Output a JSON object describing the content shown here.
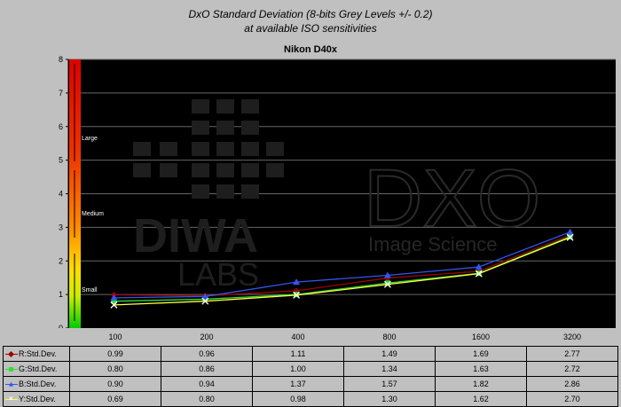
{
  "title_line1": "DxO Standard Deviation (8-bits Grey Levels +/- 0.2)",
  "title_line2": "at available ISO sensitivities",
  "subtitle": "Nikon D40x",
  "watermarks": {
    "left_top": "DIWA",
    "left_bottom": "LABS",
    "right_logo": "DXO",
    "right_sub": "Image Science"
  },
  "scale_labels": {
    "large": "Large",
    "medium": "Medium",
    "small": "Small"
  },
  "colors": {
    "plot_bg": "#000000",
    "page_bg": "#c0c0c0",
    "R": "#a00000",
    "G": "#33dd33",
    "B": "#3355ee",
    "Y": "#ffff40"
  },
  "chart_data": {
    "type": "line",
    "categories": [
      "100",
      "200",
      "400",
      "800",
      "1600",
      "3200"
    ],
    "ylim": [
      0,
      8
    ],
    "yticks": [
      "0",
      "1",
      "2",
      "3",
      "4",
      "5",
      "6",
      "7",
      "8"
    ],
    "grid": true,
    "series": [
      {
        "name": "R:Std.Dev.",
        "color": "#a00000",
        "marker": "diamond",
        "values": [
          0.99,
          0.96,
          1.11,
          1.49,
          1.69,
          2.77
        ]
      },
      {
        "name": "G:Std.Dev.",
        "color": "#33dd33",
        "marker": "square",
        "values": [
          0.8,
          0.86,
          1.0,
          1.34,
          1.63,
          2.72
        ]
      },
      {
        "name": "B:Std.Dev.",
        "color": "#3355ee",
        "marker": "triangle",
        "values": [
          0.9,
          0.94,
          1.37,
          1.57,
          1.82,
          2.86
        ]
      },
      {
        "name": "Y:Std.Dev.",
        "color": "#ffff40",
        "marker": "x",
        "values": [
          0.69,
          0.8,
          0.98,
          1.3,
          1.62,
          2.7
        ]
      }
    ],
    "table": {
      "rows": [
        {
          "label": "R:Std.Dev.",
          "values": [
            "0.99",
            "0.96",
            "1.11",
            "1.49",
            "1.69",
            "2.77"
          ]
        },
        {
          "label": "G:Std.Dev.",
          "values": [
            "0.80",
            "0.86",
            "1.00",
            "1.34",
            "1.63",
            "2.72"
          ]
        },
        {
          "label": "B:Std.Dev.",
          "values": [
            "0.90",
            "0.94",
            "1.37",
            "1.57",
            "1.82",
            "2.86"
          ]
        },
        {
          "label": "Y:Std.Dev.",
          "values": [
            "0.69",
            "0.80",
            "0.98",
            "1.30",
            "1.62",
            "2.70"
          ]
        }
      ]
    }
  }
}
